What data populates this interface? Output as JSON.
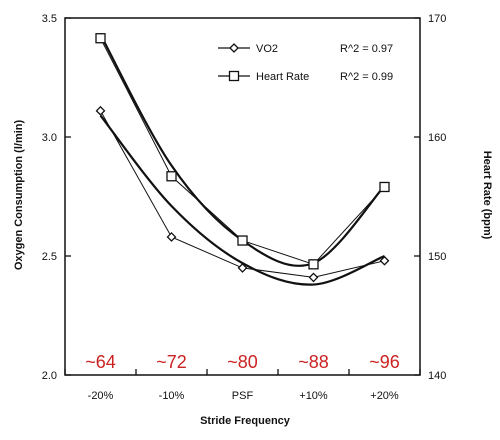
{
  "chart_data": {
    "type": "line",
    "title": "",
    "xlabel": "Stride Frequency",
    "ylabel_left": "Oxygen Consumption (l/min)",
    "ylabel_right": "Heart Rate (bpm)",
    "categories": [
      "-20%",
      "-10%",
      "PSF",
      "+10%",
      "+20%"
    ],
    "y_left": {
      "min": 2.0,
      "max": 3.5,
      "ticks": [
        "2.0",
        "2.5",
        "3.0",
        "3.5"
      ],
      "tick_values": [
        2.0,
        2.5,
        3.0,
        3.5
      ]
    },
    "y_right": {
      "min": 140,
      "max": 170,
      "ticks": [
        "140",
        "150",
        "160",
        "170"
      ],
      "tick_values": [
        140,
        150,
        160,
        170
      ]
    },
    "grid": false,
    "legend_position": "top-right",
    "series": [
      {
        "name": "VO2",
        "axis": "left",
        "marker": "diamond",
        "values": [
          3.11,
          2.58,
          2.45,
          2.41,
          2.48
        ],
        "r2_label": "R^2 = 0.97",
        "fit": [
          3.09,
          2.71,
          2.47,
          2.38,
          2.5
        ]
      },
      {
        "name": "Heart Rate",
        "axis": "right",
        "marker": "square",
        "values": [
          168.3,
          156.7,
          151.3,
          149.3,
          155.8
        ],
        "r2_label": "R^2 = 0.99",
        "fit": [
          168.6,
          157.6,
          151.3,
          149.4,
          155.9
        ]
      }
    ],
    "annotations": [
      {
        "text": "~64",
        "x": "-20%"
      },
      {
        "text": "~72",
        "x": "-10%"
      },
      {
        "text": "~80",
        "x": "PSF"
      },
      {
        "text": "~88",
        "x": "+10%"
      },
      {
        "text": "~96",
        "x": "+20%"
      }
    ],
    "colors": {
      "annotation": "#cc2222",
      "line": "#111111"
    }
  }
}
